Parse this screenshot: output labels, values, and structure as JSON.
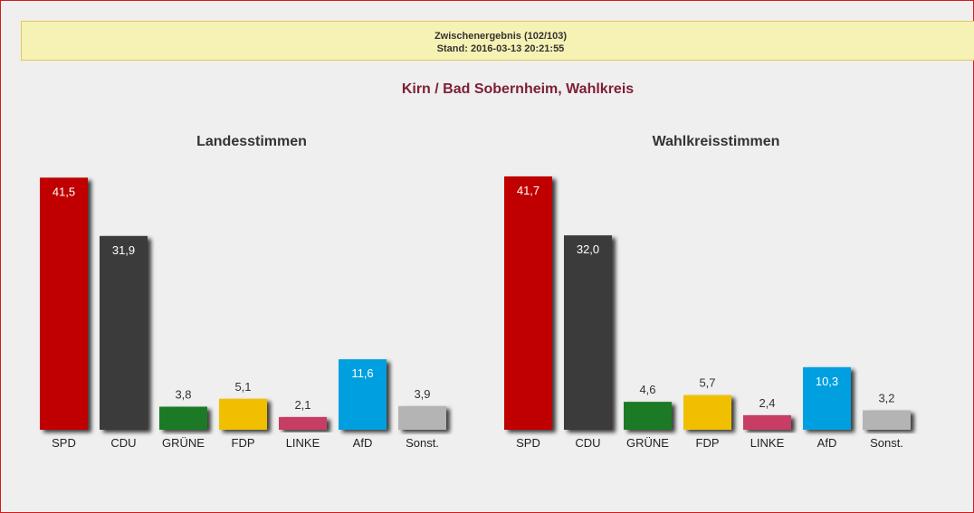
{
  "status": {
    "line1": "Zwischenergebnis (102/103)",
    "line2": "Stand: 2016-03-13 20:21:55"
  },
  "page_title": "Kirn / Bad Sobernheim, Wahlkreis",
  "chart_data": [
    {
      "type": "bar",
      "title": "Landesstimmen",
      "categories": [
        "SPD",
        "CDU",
        "GRÜNE",
        "FDP",
        "LINKE",
        "AfD",
        "Sonst."
      ],
      "values": [
        41.5,
        31.9,
        3.8,
        5.1,
        2.1,
        11.6,
        3.9
      ],
      "value_labels": [
        "41,5",
        "31,9",
        "3,8",
        "5,1",
        "2,1",
        "11,6",
        "3,9"
      ],
      "colors": [
        "#c00000",
        "#3a3a3a",
        "#1e7a26",
        "#f0c000",
        "#c83c64",
        "#00a0e0",
        "#b4b4b4"
      ],
      "ylim": [
        0,
        42
      ],
      "grid": false,
      "legend": "none"
    },
    {
      "type": "bar",
      "title": "Wahlkreisstimmen",
      "categories": [
        "SPD",
        "CDU",
        "GRÜNE",
        "FDP",
        "LINKE",
        "AfD",
        "Sonst."
      ],
      "values": [
        41.7,
        32.0,
        4.6,
        5.7,
        2.4,
        10.3,
        3.2
      ],
      "value_labels": [
        "41,7",
        "32,0",
        "4,6",
        "5,7",
        "2,4",
        "10,3",
        "3,2"
      ],
      "colors": [
        "#c00000",
        "#3a3a3a",
        "#1e7a26",
        "#f0c000",
        "#c83c64",
        "#00a0e0",
        "#b4b4b4"
      ],
      "ylim": [
        0,
        42
      ],
      "grid": false,
      "legend": "none"
    }
  ]
}
